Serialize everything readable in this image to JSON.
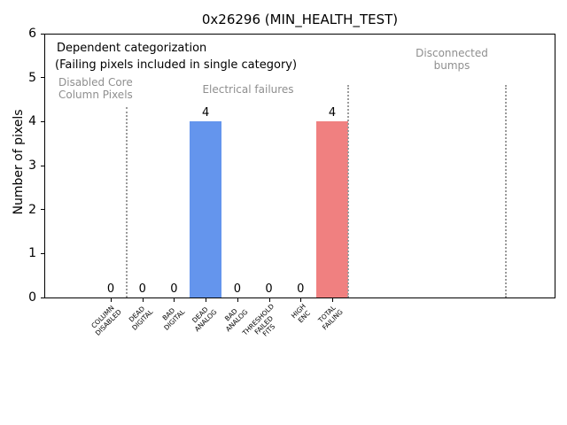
{
  "chart_data": {
    "type": "bar",
    "title": "0x26296 (MIN_HEALTH_TEST)",
    "xlabel": "",
    "ylabel": "Number of pixels",
    "ylim": [
      0,
      6
    ],
    "yticks": [
      0,
      1,
      2,
      3,
      4,
      5,
      6
    ],
    "grid": false,
    "legend": null,
    "categories": [
      "COLUMN\nDISABLED",
      "DEAD\nDIGITAL",
      "BAD\nDIGITAL",
      "DEAD\nANALOG",
      "BAD\nANALOG",
      "THRESHOLD\nFAILED\nFITS",
      "HIGH\nENC",
      "TOTAL\nFAILING"
    ],
    "values": [
      0,
      0,
      0,
      4,
      0,
      0,
      0,
      4
    ],
    "bar_colors": [
      null,
      null,
      null,
      "#6495ed",
      null,
      null,
      null,
      "#f08080"
    ],
    "annotations": [
      {
        "text": "Dependent categorization",
        "color": "#000000"
      },
      {
        "text": "(Failing pixels included in single category)",
        "color": "#000000"
      },
      {
        "text": "Disabled Core\nColumn Pixels",
        "color": "#8f8f8f"
      },
      {
        "text": "Electrical failures",
        "color": "#8f8f8f"
      },
      {
        "text": "Disconnected\nbumps",
        "color": "#8f8f8f"
      }
    ],
    "separators": [
      {
        "after_category_index": 0.5,
        "y_top_value": 4.33
      },
      {
        "after_category_index": 7.5,
        "y_top_value": 4.83
      },
      {
        "after_category_index": 12.5,
        "y_top_value": 4.83
      }
    ],
    "colors": {
      "bar_blue": "#6495ed",
      "bar_red": "#f08080",
      "annotation_gray": "#8f8f8f",
      "separator_gray": "#9b9b9b"
    }
  }
}
